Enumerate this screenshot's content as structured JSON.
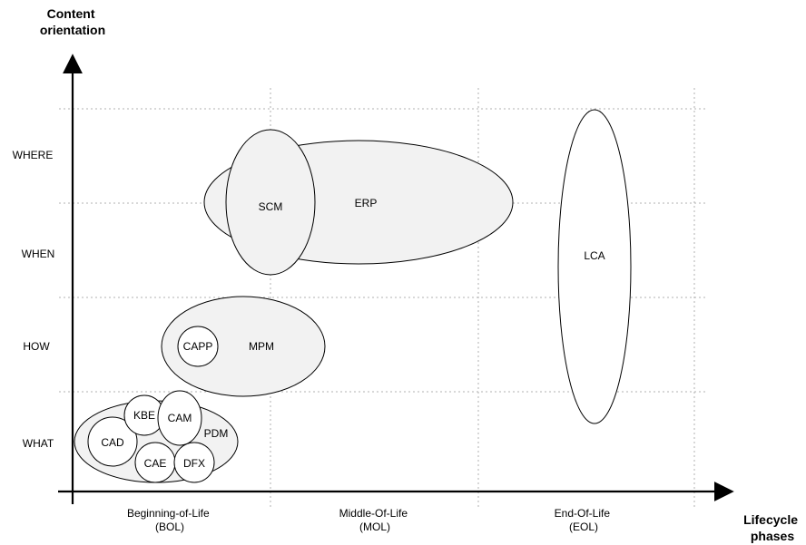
{
  "axes": {
    "y_title": [
      "Content",
      "orientation"
    ],
    "x_title": [
      "Lifecycle",
      "phases"
    ],
    "y_levels": [
      "WHERE",
      "WHEN",
      "HOW",
      "WHAT"
    ],
    "x_phases": [
      {
        "line1": "Beginning-of-Life",
        "line2": "(BOL)"
      },
      {
        "line1": "Middle-Of-Life",
        "line2": "(MOL)"
      },
      {
        "line1": "End-Of-Life",
        "line2": "(EOL)"
      }
    ]
  },
  "nodes": {
    "erp": "ERP",
    "scm": "SCM",
    "lca": "LCA",
    "mpm": "MPM",
    "capp": "CAPP",
    "pdm": "PDM",
    "cad": "CAD",
    "kbe": "KBE",
    "cam": "CAM",
    "cae": "CAE",
    "dfx": "DFX"
  },
  "colors": {
    "fill_grey": "#f2f2f2",
    "fill_white": "#ffffff",
    "stroke": "#000000",
    "grid": "#b0b0b0"
  }
}
